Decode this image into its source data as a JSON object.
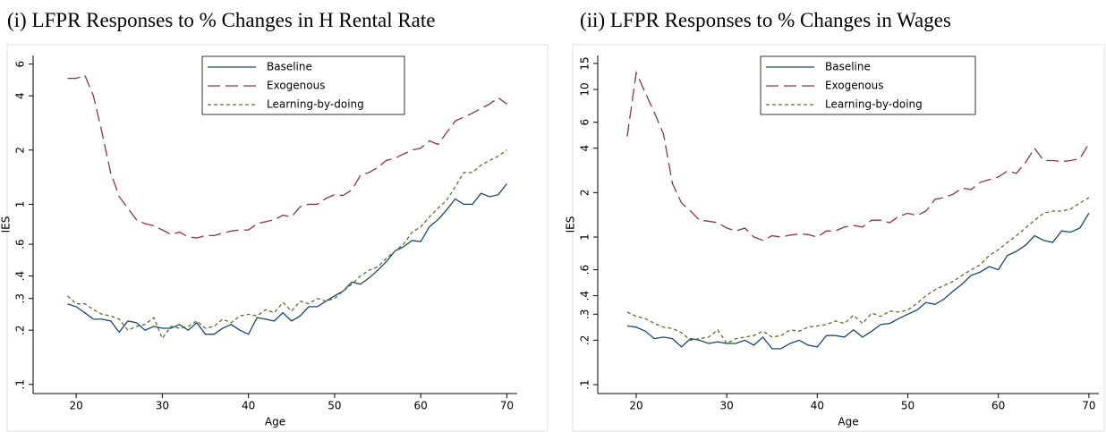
{
  "chart_data": [
    {
      "type": "line",
      "title": "(i)  LFPR Responses to % Changes in H Rental Rate",
      "x_label": "Age",
      "y_label": "IES",
      "log_y": true,
      "x": [
        19,
        20,
        21,
        22,
        23,
        24,
        25,
        26,
        27,
        28,
        29,
        30,
        31,
        32,
        33,
        34,
        35,
        36,
        37,
        38,
        39,
        40,
        41,
        42,
        43,
        44,
        45,
        46,
        47,
        48,
        49,
        50,
        51,
        52,
        53,
        54,
        55,
        56,
        57,
        58,
        59,
        60,
        61,
        62,
        63,
        64,
        65,
        66,
        67,
        68,
        69,
        70
      ],
      "xlim": [
        15,
        71.2
      ],
      "xticks": [
        20,
        30,
        40,
        50,
        60,
        70
      ],
      "ylim": [
        0.089,
        6.7
      ],
      "yticks": [
        {
          "value": 0.1,
          "label": ".1"
        },
        {
          "value": 0.2,
          "label": ".2"
        },
        {
          "value": 0.3,
          "label": ".3"
        },
        {
          "value": 0.4,
          "label": ".4"
        },
        {
          "value": 0.6,
          "label": ".6"
        },
        1,
        2,
        4,
        6
      ],
      "series": [
        {
          "name": "Baseline",
          "color": "#1a476f",
          "line_style": "solid",
          "values": [
            0.28,
            0.27,
            0.25,
            0.23,
            0.23,
            0.225,
            0.195,
            0.225,
            0.22,
            0.2,
            0.21,
            0.205,
            0.205,
            0.215,
            0.2,
            0.22,
            0.19,
            0.19,
            0.205,
            0.215,
            0.2,
            0.19,
            0.235,
            0.23,
            0.225,
            0.25,
            0.225,
            0.24,
            0.27,
            0.27,
            0.29,
            0.31,
            0.33,
            0.37,
            0.36,
            0.39,
            0.43,
            0.48,
            0.55,
            0.58,
            0.63,
            0.62,
            0.75,
            0.82,
            0.93,
            1.07,
            1.0,
            1.0,
            1.15,
            1.1,
            1.13,
            1.3
          ]
        },
        {
          "name": "Exogenous",
          "color": "#90353b",
          "line_style": "longdash",
          "values": [
            5.0,
            5.0,
            5.2,
            4.0,
            2.5,
            1.5,
            1.1,
            0.95,
            0.82,
            0.78,
            0.76,
            0.72,
            0.68,
            0.7,
            0.66,
            0.65,
            0.67,
            0.67,
            0.69,
            0.71,
            0.72,
            0.72,
            0.78,
            0.8,
            0.82,
            0.87,
            0.85,
            0.97,
            1.0,
            1.0,
            1.08,
            1.13,
            1.12,
            1.2,
            1.45,
            1.5,
            1.6,
            1.75,
            1.8,
            1.9,
            2.0,
            2.05,
            2.25,
            2.15,
            2.5,
            2.9,
            3.05,
            3.2,
            3.4,
            3.6,
            3.9,
            3.6
          ]
        },
        {
          "name": "Learning-by-doing",
          "color": "#55752f",
          "line_style": "shortdash",
          "values": [
            0.31,
            0.28,
            0.28,
            0.26,
            0.245,
            0.24,
            0.23,
            0.2,
            0.21,
            0.215,
            0.235,
            0.18,
            0.21,
            0.205,
            0.21,
            0.225,
            0.205,
            0.21,
            0.23,
            0.22,
            0.24,
            0.245,
            0.24,
            0.26,
            0.25,
            0.285,
            0.255,
            0.29,
            0.28,
            0.3,
            0.29,
            0.3,
            0.33,
            0.36,
            0.4,
            0.43,
            0.45,
            0.5,
            0.55,
            0.6,
            0.7,
            0.75,
            0.85,
            0.95,
            1.05,
            1.25,
            1.5,
            1.5,
            1.65,
            1.75,
            1.85,
            2.0
          ]
        }
      ]
    },
    {
      "type": "line",
      "title": "(ii)  LFPR Responses to % Changes in Wages",
      "x_label": "Age",
      "y_label": "IES",
      "log_y": true,
      "x": [
        19,
        20,
        21,
        22,
        23,
        24,
        25,
        26,
        27,
        28,
        29,
        30,
        31,
        32,
        33,
        34,
        35,
        36,
        37,
        38,
        39,
        40,
        41,
        42,
        43,
        44,
        45,
        46,
        47,
        48,
        49,
        50,
        51,
        52,
        53,
        54,
        55,
        56,
        57,
        58,
        59,
        60,
        61,
        62,
        63,
        64,
        65,
        66,
        67,
        68,
        69,
        70
      ],
      "xlim": [
        15.75,
        71.1
      ],
      "xticks": [
        20,
        30,
        40,
        50,
        60,
        70
      ],
      "ylim": [
        0.087,
        17
      ],
      "yticks": [
        {
          "value": 0.1,
          "label": ".1"
        },
        {
          "value": 0.2,
          "label": ".2"
        },
        {
          "value": 0.3,
          "label": ".3"
        },
        {
          "value": 0.4,
          "label": ".4"
        },
        {
          "value": 0.6,
          "label": ".6"
        },
        1,
        2,
        4,
        6,
        10,
        15
      ],
      "series": [
        {
          "name": "Baseline",
          "color": "#1a476f",
          "line_style": "solid",
          "values": [
            0.25,
            0.245,
            0.23,
            0.205,
            0.21,
            0.205,
            0.18,
            0.205,
            0.2,
            0.19,
            0.195,
            0.19,
            0.19,
            0.2,
            0.185,
            0.21,
            0.175,
            0.175,
            0.19,
            0.2,
            0.185,
            0.18,
            0.215,
            0.215,
            0.21,
            0.235,
            0.21,
            0.23,
            0.255,
            0.26,
            0.28,
            0.3,
            0.32,
            0.36,
            0.35,
            0.38,
            0.43,
            0.48,
            0.55,
            0.58,
            0.63,
            0.6,
            0.75,
            0.8,
            0.88,
            1.02,
            0.95,
            0.92,
            1.1,
            1.08,
            1.15,
            1.45
          ]
        },
        {
          "name": "Exogenous",
          "color": "#90353b",
          "line_style": "longdash",
          "values": [
            4.8,
            13,
            9.5,
            7,
            5,
            2.3,
            1.7,
            1.5,
            1.3,
            1.28,
            1.25,
            1.15,
            1.1,
            1.15,
            1.0,
            0.95,
            1.02,
            1.0,
            1.03,
            1.05,
            1.04,
            1.0,
            1.1,
            1.1,
            1.17,
            1.2,
            1.17,
            1.3,
            1.3,
            1.25,
            1.38,
            1.45,
            1.4,
            1.5,
            1.8,
            1.85,
            1.95,
            2.15,
            2.1,
            2.35,
            2.45,
            2.55,
            2.8,
            2.7,
            3.2,
            4.0,
            3.3,
            3.3,
            3.25,
            3.3,
            3.4,
            4.3
          ]
        },
        {
          "name": "Learning-by-doing",
          "color": "#55752f",
          "line_style": "shortdash",
          "values": [
            0.31,
            0.29,
            0.28,
            0.26,
            0.245,
            0.24,
            0.225,
            0.2,
            0.205,
            0.21,
            0.235,
            0.19,
            0.205,
            0.21,
            0.215,
            0.23,
            0.21,
            0.215,
            0.235,
            0.23,
            0.245,
            0.25,
            0.255,
            0.27,
            0.26,
            0.295,
            0.26,
            0.305,
            0.29,
            0.315,
            0.31,
            0.32,
            0.355,
            0.4,
            0.44,
            0.47,
            0.5,
            0.55,
            0.6,
            0.65,
            0.75,
            0.82,
            0.92,
            1.02,
            1.15,
            1.3,
            1.45,
            1.5,
            1.5,
            1.55,
            1.7,
            1.85
          ]
        }
      ]
    }
  ]
}
